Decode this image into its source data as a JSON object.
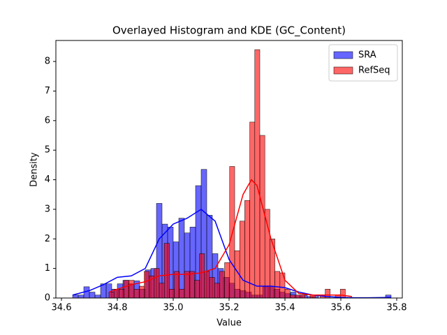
{
  "chart_data": {
    "type": "histogram",
    "title": "Overlayed Histogram and KDE (GC_Content)",
    "x_label": "Value",
    "y_label": "Density",
    "xlim": [
      34.58,
      35.82
    ],
    "ylim": [
      0,
      8.71
    ],
    "xticks": [
      34.6,
      34.8,
      {
        "value": 35,
        "label": "35.0"
      },
      35.2,
      35.4,
      35.6,
      35.8
    ],
    "yticks": [
      0,
      1,
      2,
      3,
      4,
      5,
      6,
      7,
      8
    ],
    "legend": "upper right",
    "series": [
      {
        "name": "SRA",
        "color": "#0000ff",
        "bins": [
          34.64,
          34.66,
          34.68,
          34.7,
          34.72,
          34.74,
          34.76,
          34.78,
          34.8,
          34.82,
          34.84,
          34.86,
          34.88,
          34.9,
          34.92,
          34.94,
          34.96,
          34.98,
          35.0,
          35.02,
          35.04,
          35.06,
          35.08,
          35.1,
          35.12,
          35.14,
          35.16,
          35.18,
          35.2,
          35.22,
          35.24,
          35.26,
          35.28,
          35.3,
          35.32,
          35.34,
          35.36,
          35.38,
          35.4,
          35.42,
          35.44,
          35.46,
          35.48,
          35.5,
          35.52,
          35.54,
          35.56,
          35.58,
          35.6,
          35.62,
          35.64,
          35.66,
          35.68,
          35.7,
          35.72,
          35.74,
          35.76,
          35.78
        ],
        "values": [
          0.1,
          0.1,
          0.38,
          0.2,
          0.1,
          0.48,
          0.48,
          0.3,
          0.48,
          0.6,
          0.48,
          0.58,
          0.3,
          0.95,
          1.0,
          3.2,
          2.5,
          2.4,
          1.9,
          2.7,
          2.2,
          2.4,
          3.8,
          4.35,
          2.8,
          1.5,
          1.0,
          0.7,
          0.5,
          0.3,
          0.25,
          0.2,
          0.1,
          0.1,
          0.38,
          0.4,
          0.3,
          0.2,
          0.15,
          0.2,
          0.1,
          0.1,
          0.05,
          0.05,
          0,
          0,
          0,
          0,
          0,
          0,
          0,
          0,
          0,
          0,
          0,
          0,
          0.1
        ],
        "kde": {
          "x": [
            34.64,
            34.7,
            34.75,
            34.8,
            34.85,
            34.9,
            34.95,
            35.0,
            35.05,
            35.1,
            35.15,
            35.2,
            35.25,
            35.3,
            35.35,
            35.4,
            35.45,
            35.5,
            35.55,
            35.6,
            35.65,
            35.7,
            35.78
          ],
          "y": [
            0.1,
            0.25,
            0.45,
            0.7,
            0.75,
            1.0,
            2.0,
            2.5,
            2.7,
            3.0,
            2.6,
            1.3,
            0.6,
            0.4,
            0.4,
            0.35,
            0.2,
            0.1,
            0.05,
            0.02,
            0.01,
            0.01,
            0.02
          ]
        }
      },
      {
        "name": "RefSeq",
        "color": "#ff0000",
        "bins": [
          34.77,
          34.788,
          34.806,
          34.824,
          34.842,
          34.86,
          34.878,
          34.896,
          34.914,
          34.932,
          34.95,
          34.968,
          34.986,
          35.004,
          35.022,
          35.04,
          35.058,
          35.076,
          35.094,
          35.112,
          35.13,
          35.148,
          35.166,
          35.184,
          35.202,
          35.22,
          35.238,
          35.256,
          35.274,
          35.292,
          35.31,
          35.328,
          35.346,
          35.364,
          35.382,
          35.4,
          35.418,
          35.436,
          35.454,
          35.472,
          35.49,
          35.508,
          35.526,
          35.544,
          35.562,
          35.58,
          35.598,
          35.616,
          35.634
        ],
        "values": [
          0.2,
          0.3,
          0.3,
          0.6,
          0.6,
          0.3,
          0.4,
          0.9,
          0.75,
          1.0,
          0.5,
          1.85,
          0.3,
          0.9,
          0.3,
          0.9,
          0.9,
          0.6,
          1.5,
          0.9,
          0.7,
          0.5,
          0.9,
          1.2,
          4.45,
          1.6,
          2.6,
          3.3,
          5.95,
          8.4,
          5.5,
          3.0,
          2.0,
          0.9,
          0.85,
          0.3,
          0.1,
          0.1,
          0.1,
          0,
          0.1,
          0,
          0.1,
          0.3,
          0,
          0.1,
          0.3,
          0
        ],
        "kde": {
          "x": [
            34.77,
            34.8,
            34.85,
            34.9,
            34.95,
            35.0,
            35.05,
            35.1,
            35.15,
            35.2,
            35.25,
            35.28,
            35.3,
            35.35,
            35.4,
            35.45,
            35.5,
            35.55,
            35.6,
            35.64
          ],
          "y": [
            0.2,
            0.3,
            0.45,
            0.55,
            0.75,
            0.8,
            0.8,
            0.85,
            1.0,
            1.8,
            3.5,
            4.0,
            3.8,
            2.0,
            0.6,
            0.15,
            0.1,
            0.1,
            0.1,
            0.05
          ]
        }
      }
    ]
  }
}
